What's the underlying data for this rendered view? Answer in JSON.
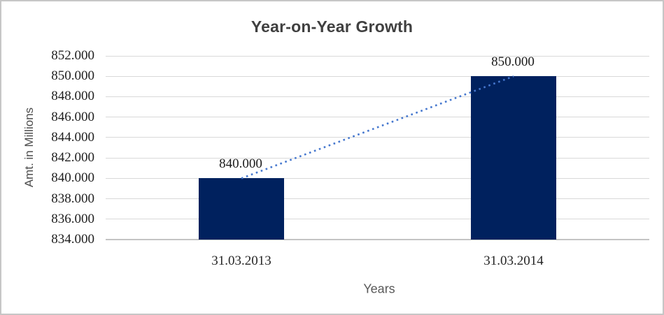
{
  "frame": {
    "background": "#ffffff",
    "border_color": "#c6c6c6"
  },
  "chart_data": {
    "type": "bar",
    "title": "Year-on-Year Growth",
    "xlabel": "Years",
    "ylabel": "Amt. in Millions",
    "categories": [
      "31.03.2013",
      "31.03.2014"
    ],
    "series": [
      {
        "values": [
          840,
          850
        ],
        "data_labels": [
          "840.000",
          "850.000"
        ]
      }
    ],
    "ylim": [
      834,
      852
    ],
    "ytick_interval": 2,
    "ytick_labels": [
      "852.000",
      "850.000",
      "848.000",
      "846.000",
      "844.000",
      "842.000",
      "840.000",
      "838.000",
      "836.000",
      "834.000"
    ],
    "grid": true,
    "legend": "none",
    "trendline_style": "dotted",
    "colors": {
      "bar": "#00215E",
      "trendline": "#4577CE",
      "gridline": "#D9D9D9",
      "axis_line": "#C4C4C4",
      "title_text": "#404040",
      "tick_text": "#1F1F1F"
    }
  }
}
